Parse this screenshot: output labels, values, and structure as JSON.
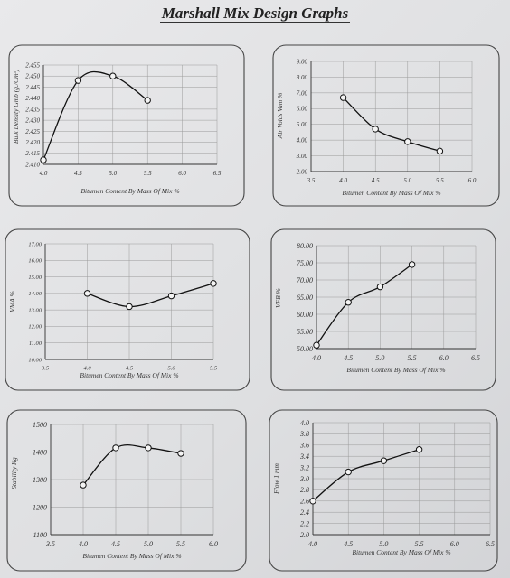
{
  "page": {
    "title": "Marshall Mix Design Graphs"
  },
  "chart_data": [
    {
      "type": "line",
      "ylabel": "Bulk Density Gmb (g./Cm³)",
      "xlabel": "Bitumen Content By Mass Of Mix %",
      "xlim": [
        4.0,
        6.5
      ],
      "ylim": [
        2.41,
        2.455
      ],
      "x_ticks": [
        "4.0",
        "4.5",
        "5.0",
        "5.5",
        "6.0",
        "6.5"
      ],
      "y_ticks": [
        "2.410",
        "2.415",
        "2.420",
        "2.425",
        "2.430",
        "2.435",
        "2.440",
        "2.445",
        "2.450",
        "2.455"
      ],
      "series": [
        {
          "x": [
            4.0,
            4.5,
            5.0,
            5.5
          ],
          "y": [
            2.412,
            2.448,
            2.45,
            2.439
          ]
        }
      ],
      "grid": true
    },
    {
      "type": "line",
      "ylabel": "Air Voids Vam %",
      "xlabel": "Bitumen Content By Mass Of Mix %",
      "xlim": [
        3.5,
        6.0
      ],
      "ylim": [
        2.0,
        9.0
      ],
      "x_ticks": [
        "3.5",
        "4.0",
        "4.5",
        "5.0",
        "5.5",
        "6.0"
      ],
      "y_ticks": [
        "2.00",
        "3.00",
        "4.00",
        "5.00",
        "6.00",
        "7.00",
        "8.00",
        "9.00"
      ],
      "series": [
        {
          "x": [
            4.0,
            4.5,
            5.0,
            5.5
          ],
          "y": [
            6.7,
            4.7,
            3.9,
            3.3
          ]
        }
      ],
      "grid": true
    },
    {
      "type": "line",
      "ylabel": "VMA %",
      "xlabel": "Bitumen Content By Mass Of Mix %",
      "xlim": [
        3.5,
        5.5
      ],
      "ylim": [
        10.0,
        17.0
      ],
      "x_ticks": [
        "3.5",
        "4.0",
        "4.5",
        "5.0",
        "5.5"
      ],
      "y_ticks": [
        "10.00",
        "11.00",
        "12.00",
        "13.00",
        "14.00",
        "15.00",
        "16.00",
        "17.00"
      ],
      "series": [
        {
          "x": [
            4.0,
            4.5,
            5.0,
            5.5
          ],
          "y": [
            14.0,
            13.2,
            13.85,
            14.6
          ]
        }
      ],
      "grid": true
    },
    {
      "type": "line",
      "ylabel": "VFB %",
      "xlabel": "Bitumen Content By Mass Of Mix %",
      "xlim": [
        4.0,
        6.5
      ],
      "ylim": [
        50.0,
        80.0
      ],
      "x_ticks": [
        "4.0",
        "4.5",
        "5.0",
        "5.5",
        "6.0",
        "6.5"
      ],
      "y_ticks": [
        "50.00",
        "55.00",
        "60.00",
        "65.00",
        "70.00",
        "75.00",
        "80.00"
      ],
      "series": [
        {
          "x": [
            4.0,
            4.5,
            5.0,
            5.5
          ],
          "y": [
            51.0,
            63.5,
            68.0,
            74.5
          ]
        }
      ],
      "grid": true
    },
    {
      "type": "line",
      "ylabel": "Stability Kg",
      "xlabel": "Bitumen Content By Mass Of Mix %",
      "xlim": [
        3.5,
        6.0
      ],
      "ylim": [
        1100,
        1500
      ],
      "x_ticks": [
        "3.5",
        "4.0",
        "4.5",
        "5.0",
        "5.5",
        "6.0"
      ],
      "y_ticks": [
        "1100",
        "1200",
        "1300",
        "1400",
        "1500"
      ],
      "series": [
        {
          "x": [
            4.0,
            4.5,
            5.0,
            5.5
          ],
          "y": [
            1280,
            1415,
            1415,
            1395
          ]
        }
      ],
      "grid": true
    },
    {
      "type": "line",
      "ylabel": "Flow 1 mm",
      "xlabel": "Bitumen Content By Mass Of Mix %",
      "xlim": [
        4.0,
        6.5
      ],
      "ylim": [
        2.0,
        4.0
      ],
      "x_ticks": [
        "4.0",
        "4.5",
        "5.0",
        "5.5",
        "6.0",
        "6.5"
      ],
      "y_ticks": [
        "2.0",
        "2.2",
        "2.4",
        "2.6",
        "2.8",
        "3.0",
        "3.2",
        "3.4",
        "3.6",
        "3.8",
        "4.0"
      ],
      "series": [
        {
          "x": [
            4.0,
            4.5,
            5.0,
            5.5
          ],
          "y": [
            2.6,
            3.12,
            3.32,
            3.52
          ]
        }
      ],
      "grid": true
    }
  ]
}
